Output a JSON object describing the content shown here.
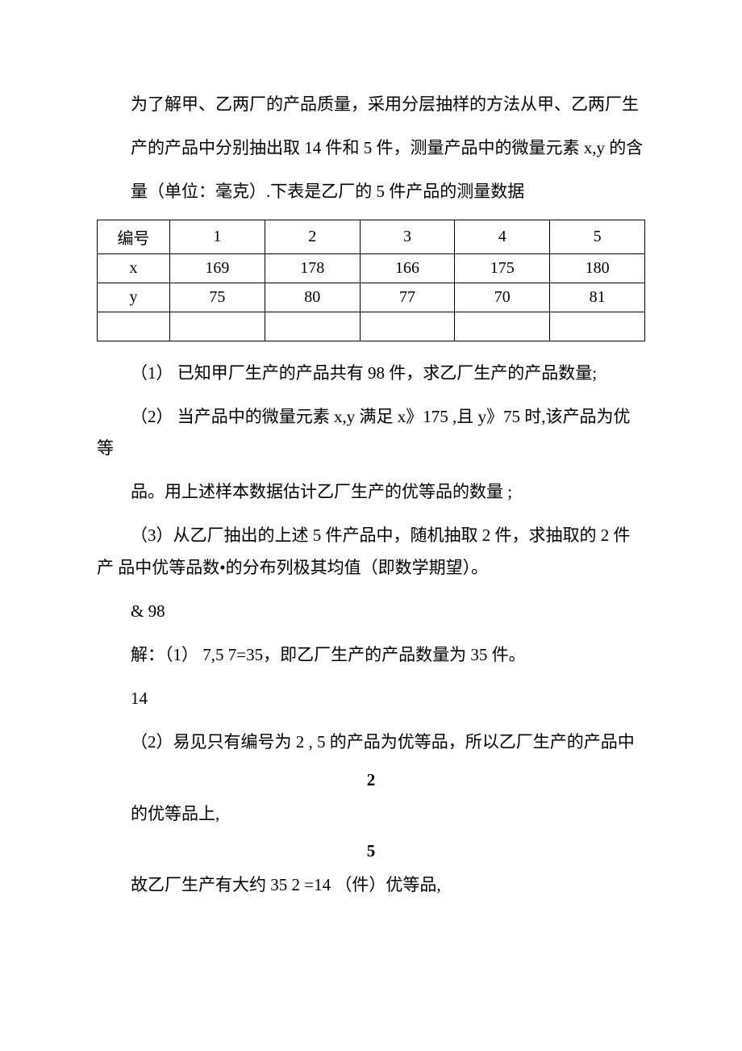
{
  "paragraphs": {
    "p1": "为了解甲、乙两厂的产品质量，采用分层抽样的方法从甲、乙两厂生",
    "p2": "产的产品中分别抽出取 14 件和 5 件，测量产品中的微量元素 x,y 的含",
    "p3": "量（单位：毫克）.下表是乙厂的 5 件产品的测量数据",
    "p4": "（1） 已知甲厂生产的产品共有 98 件，求乙厂生产的产品数量;",
    "p5": "（2） 当产品中的微量元素 x,y 满足 x》175 ,且 y》75 时,该产品为优等",
    "p6": "品。用上述样本数据估计乙厂生产的优等品的数量 ;",
    "p7": "（3）从乙厂抽出的上述 5 件产品中，随机抽取 2 件，求抽取的 2 件产 品中优等品数•的分布列极其均值（即数学期望）。",
    "p8": "& 98",
    "p9": "解：（1） 7,5 7=35，即乙厂生产的产品数量为 35 件。",
    "p10": "14",
    "p11": "（2）易见只有编号为 2 , 5 的产品为优等品，所以乙厂生产的产品中",
    "p12": "2",
    "p13": "的优等品上,",
    "p14": "5",
    "p15": "故乙厂生产有大约 35 2 =14 （件）优等品,"
  },
  "table": {
    "headers": [
      "编号",
      "1",
      "2",
      "3",
      "4",
      "5"
    ],
    "rows": [
      [
        "x",
        "169",
        "178",
        "166",
        "175",
        "180"
      ],
      [
        "y",
        "75",
        "80",
        "77",
        "70",
        "81"
      ],
      [
        "",
        "",
        "",
        "",
        "",
        ""
      ]
    ],
    "col_widths": [
      "90px",
      "118px",
      "118px",
      "118px",
      "118px",
      "118px"
    ],
    "border_color": "#000000"
  }
}
